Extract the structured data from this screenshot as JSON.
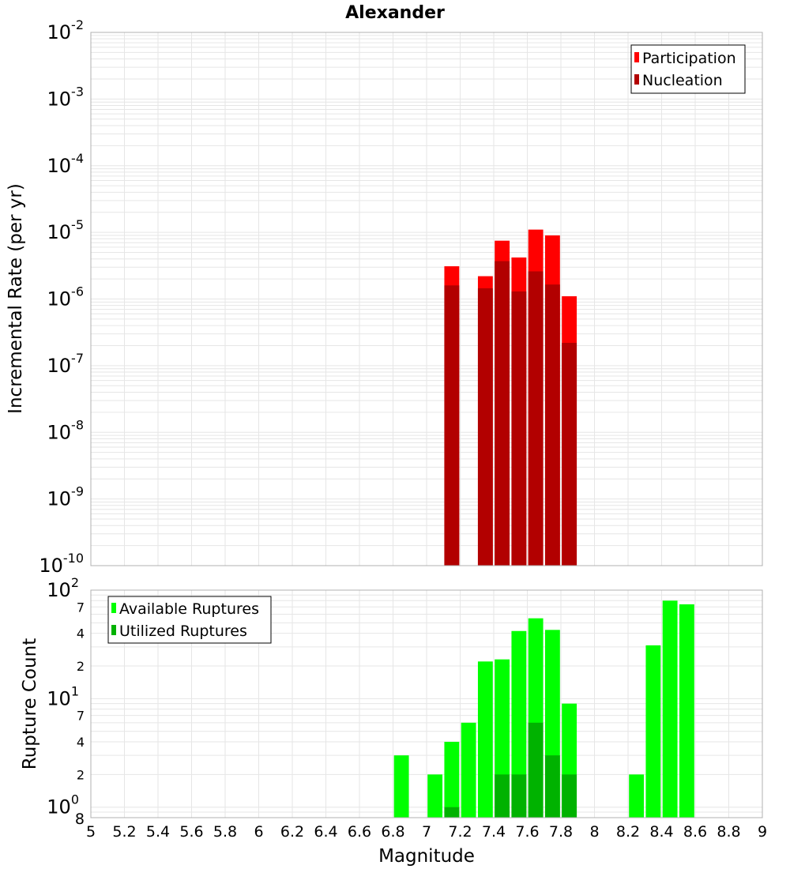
{
  "title": "Alexander",
  "xlabel": "Magnitude",
  "x_ticks": [
    "5",
    "5.2",
    "5.4",
    "5.6",
    "5.8",
    "6",
    "6.2",
    "6.4",
    "6.6",
    "6.8",
    "7",
    "7.2",
    "7.4",
    "7.6",
    "7.8",
    "8",
    "8.2",
    "8.4",
    "8.6",
    "8.8",
    "9"
  ],
  "colors": {
    "participation": "#ff0000",
    "nucleation": "#b20000",
    "available": "#00ff00",
    "utilized": "#00b200",
    "grid": "#e6e6e6",
    "frame": "#b0b0b0"
  },
  "chart_data": [
    {
      "type": "bar",
      "name": "rates",
      "ylabel": "Incremental Rate (per yr)",
      "yscale": "log",
      "ylim": [
        1e-10,
        0.01
      ],
      "xlim": [
        5,
        9
      ],
      "y_tick_bases": [
        "10",
        "10",
        "10",
        "10",
        "10",
        "10",
        "10",
        "10",
        "10"
      ],
      "y_tick_exponents": [
        "-10",
        "-9",
        "-8",
        "-7",
        "-6",
        "-5",
        "-4",
        "-3",
        "-2"
      ],
      "legend": [
        "Participation",
        "Nucleation"
      ],
      "legend_position": "top-right",
      "series": [
        {
          "name": "Participation",
          "x": [
            7.15,
            7.35,
            7.45,
            7.55,
            7.65,
            7.75,
            7.85
          ],
          "values": [
            3.1e-06,
            2.2e-06,
            7.5e-06,
            4.2e-06,
            1.1e-05,
            9e-06,
            1.1e-06
          ]
        },
        {
          "name": "Nucleation",
          "x": [
            7.15,
            7.35,
            7.45,
            7.55,
            7.65,
            7.75,
            7.85
          ],
          "values": [
            1.6e-06,
            1.45e-06,
            3.7e-06,
            1.3e-06,
            2.6e-06,
            1.65e-06,
            2.2e-07
          ]
        }
      ]
    },
    {
      "type": "bar",
      "name": "counts",
      "ylabel": "Rupture Count",
      "yscale": "log",
      "ylim": [
        0.8,
        100
      ],
      "xlim": [
        5,
        9
      ],
      "y_major_bases": [
        "10",
        "10",
        "10"
      ],
      "y_major_exponents": [
        "0",
        "1",
        "2"
      ],
      "y_minor_labels": [
        "8",
        "2",
        "4",
        "7",
        "2",
        "4",
        "7"
      ],
      "legend": [
        "Available Ruptures",
        "Utilized Ruptures"
      ],
      "legend_position": "top-left",
      "series": [
        {
          "name": "Available Ruptures",
          "x": [
            6.85,
            7.05,
            7.15,
            7.25,
            7.35,
            7.45,
            7.55,
            7.65,
            7.75,
            7.85,
            8.25,
            8.35,
            8.45,
            8.55
          ],
          "values": [
            3,
            2,
            4,
            6,
            22,
            23,
            42,
            55,
            43,
            9,
            2,
            31,
            80,
            74
          ]
        },
        {
          "name": "Utilized Ruptures",
          "x": [
            7.15,
            7.45,
            7.55,
            7.65,
            7.75,
            7.85
          ],
          "values": [
            1,
            2,
            2,
            6,
            3,
            2
          ]
        }
      ]
    }
  ]
}
